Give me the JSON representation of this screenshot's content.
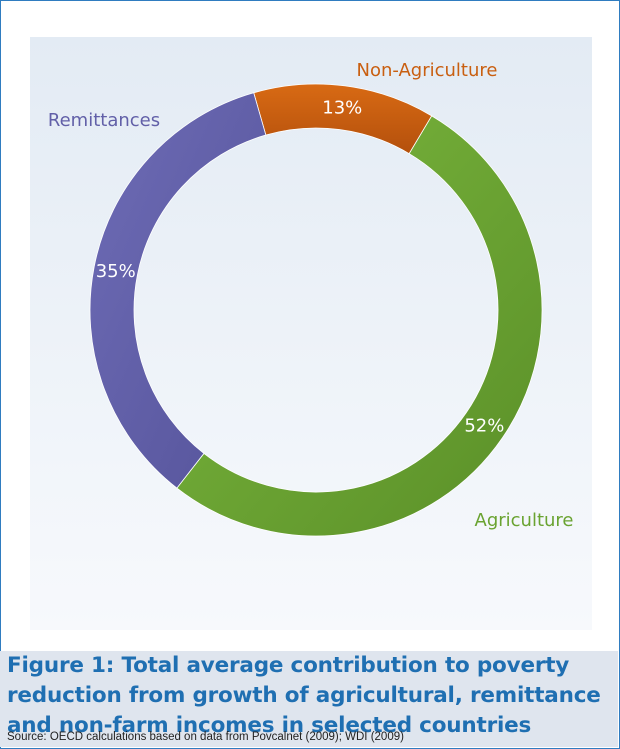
{
  "caption": {
    "title": "Figure 1: Total average contribution to poverty\nreduction from growth of agricultural, remittance\nand non-farm incomes in selected countries",
    "source": "Source: OECD calculations based on data from Povcalnet (2009); WDI (2009)"
  },
  "chart_data": {
    "type": "pie",
    "categories": [
      "Non-Agriculture",
      "Agriculture",
      "Remittances"
    ],
    "values": [
      13,
      52,
      35
    ],
    "value_labels": [
      "13%",
      "52%",
      "35%"
    ],
    "colors": [
      "#c95f10",
      "#6aa331",
      "#6260a8"
    ],
    "legend": "none"
  }
}
